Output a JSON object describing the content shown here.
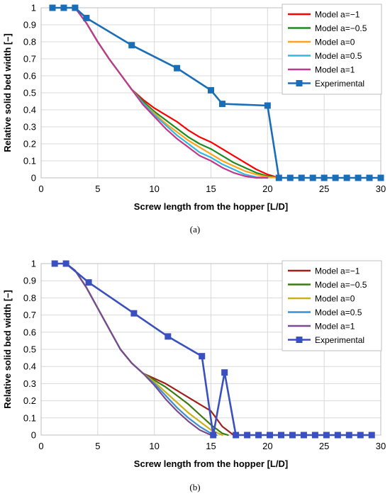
{
  "chart_data": [
    {
      "type": "line",
      "caption": "(a)",
      "xlabel": "Screw length from the hopper [L/D]",
      "ylabel": "Relative solid bed width [–]",
      "xlim": [
        0,
        30
      ],
      "ylim": [
        0,
        1
      ],
      "x_ticks": [
        "0",
        "5",
        "10",
        "15",
        "20",
        "25",
        "30"
      ],
      "y_ticks": [
        "0",
        "0.1",
        "0.2",
        "0.3",
        "0.4",
        "0.5",
        "0.6",
        "0.7",
        "0.8",
        "0.9",
        "1"
      ],
      "grid": true,
      "legend_position": "top-right",
      "series": [
        {
          "name": "Model a=−1",
          "color": "#ff0000",
          "marker": false,
          "x": [
            3,
            4,
            5,
            6,
            7,
            8,
            9,
            10,
            11,
            12,
            13,
            14,
            15,
            16,
            17,
            18,
            19,
            20,
            21
          ],
          "y": [
            1.0,
            0.91,
            0.8,
            0.7,
            0.61,
            0.52,
            0.46,
            0.41,
            0.37,
            0.33,
            0.28,
            0.24,
            0.21,
            0.17,
            0.13,
            0.09,
            0.05,
            0.02,
            0.0
          ]
        },
        {
          "name": "Model a=−0.5",
          "color": "#1f8a1f",
          "marker": false,
          "x": [
            3,
            4,
            5,
            6,
            7,
            8,
            9,
            10,
            11,
            12,
            13,
            14,
            15,
            16,
            17,
            18,
            19,
            20,
            21
          ],
          "y": [
            1.0,
            0.91,
            0.8,
            0.7,
            0.61,
            0.52,
            0.45,
            0.39,
            0.34,
            0.29,
            0.24,
            0.2,
            0.17,
            0.13,
            0.09,
            0.06,
            0.03,
            0.01,
            0.0
          ]
        },
        {
          "name": "Model a=0",
          "color": "#ffa31a",
          "marker": false,
          "x": [
            3,
            4,
            5,
            6,
            7,
            8,
            9,
            10,
            11,
            12,
            13,
            14,
            15,
            16,
            17,
            18,
            19,
            20,
            21
          ],
          "y": [
            1.0,
            0.91,
            0.8,
            0.7,
            0.61,
            0.52,
            0.44,
            0.38,
            0.32,
            0.27,
            0.22,
            0.18,
            0.14,
            0.1,
            0.07,
            0.04,
            0.02,
            0.005,
            0.0
          ]
        },
        {
          "name": "Model a=0.5",
          "color": "#33b8e0",
          "marker": false,
          "x": [
            3,
            4,
            5,
            6,
            7,
            8,
            9,
            10,
            11,
            12,
            13,
            14,
            15,
            16,
            17,
            18,
            19,
            20
          ],
          "y": [
            1.0,
            0.91,
            0.8,
            0.7,
            0.61,
            0.52,
            0.44,
            0.37,
            0.31,
            0.25,
            0.2,
            0.15,
            0.12,
            0.08,
            0.05,
            0.02,
            0.005,
            0.0
          ]
        },
        {
          "name": "Model a=1",
          "color": "#c0398a",
          "marker": false,
          "x": [
            3,
            4,
            5,
            6,
            7,
            8,
            9,
            10,
            11,
            12,
            13,
            14,
            15,
            16,
            17,
            18,
            19,
            20
          ],
          "y": [
            1.0,
            0.91,
            0.8,
            0.7,
            0.61,
            0.52,
            0.43,
            0.36,
            0.29,
            0.23,
            0.18,
            0.13,
            0.1,
            0.06,
            0.03,
            0.01,
            0.0,
            0.0
          ]
        },
        {
          "name": "Experimental",
          "color": "#1a6eb8",
          "marker": true,
          "x": [
            1,
            2,
            3,
            4,
            8,
            12,
            15,
            16,
            20,
            21,
            22,
            23,
            24,
            25,
            26,
            27,
            28,
            29,
            30
          ],
          "y": [
            1.0,
            1.0,
            1.0,
            0.94,
            0.78,
            0.645,
            0.515,
            0.435,
            0.425,
            0.0,
            0.0,
            0.0,
            0.0,
            0.0,
            0.0,
            0.0,
            0.0,
            0.0,
            0.0
          ]
        }
      ]
    },
    {
      "type": "line",
      "caption": "(b)",
      "xlabel": "Screw length from the hopper [L/D]",
      "ylabel": "Relative solid bed width [–]",
      "xlim": [
        0,
        30
      ],
      "ylim": [
        0,
        1
      ],
      "x_ticks": [
        "0",
        "5",
        "10",
        "15",
        "20",
        "25",
        "30"
      ],
      "y_ticks": [
        "0",
        "0.1",
        "0.2",
        "0.3",
        "0.4",
        "0.5",
        "0.6",
        "0.7",
        "0.8",
        "0.9",
        "1"
      ],
      "grid": true,
      "legend_position": "top-right",
      "series": [
        {
          "name": "Model a=−1",
          "color": "#a0201a",
          "marker": false,
          "x": [
            2.2,
            3,
            4,
            5,
            6,
            7,
            8,
            9,
            10,
            11,
            12,
            13,
            14,
            15,
            16,
            17
          ],
          "y": [
            1.0,
            0.96,
            0.86,
            0.74,
            0.62,
            0.5,
            0.42,
            0.36,
            0.33,
            0.3,
            0.26,
            0.22,
            0.18,
            0.14,
            0.05,
            0.0
          ]
        },
        {
          "name": "Model a=−0.5",
          "color": "#3d7a12",
          "marker": false,
          "x": [
            2.2,
            3,
            4,
            5,
            6,
            7,
            8,
            9,
            10,
            11,
            12,
            13,
            14,
            15,
            16,
            16.5
          ],
          "y": [
            1.0,
            0.96,
            0.86,
            0.74,
            0.62,
            0.5,
            0.42,
            0.36,
            0.32,
            0.28,
            0.23,
            0.18,
            0.12,
            0.06,
            0.01,
            0.0
          ]
        },
        {
          "name": "Model a=0",
          "color": "#c7b21a",
          "marker": false,
          "x": [
            2.2,
            3,
            4,
            5,
            6,
            7,
            8,
            9,
            10,
            11,
            12,
            13,
            14,
            15,
            16
          ],
          "y": [
            1.0,
            0.96,
            0.86,
            0.74,
            0.62,
            0.5,
            0.42,
            0.36,
            0.31,
            0.25,
            0.19,
            0.13,
            0.08,
            0.03,
            0.0
          ]
        },
        {
          "name": "Model a=0.5",
          "color": "#3c8ed4",
          "marker": false,
          "x": [
            2.2,
            3,
            4,
            5,
            6,
            7,
            8,
            9,
            10,
            11,
            12,
            13,
            14,
            15,
            15.5
          ],
          "y": [
            1.0,
            0.96,
            0.86,
            0.74,
            0.62,
            0.5,
            0.42,
            0.36,
            0.3,
            0.23,
            0.16,
            0.1,
            0.05,
            0.01,
            0.0
          ]
        },
        {
          "name": "Model a=1",
          "color": "#7a4a90",
          "marker": false,
          "x": [
            2.2,
            3,
            4,
            5,
            6,
            7,
            8,
            9,
            10,
            11,
            12,
            13,
            14,
            15
          ],
          "y": [
            1.0,
            0.96,
            0.86,
            0.74,
            0.62,
            0.5,
            0.42,
            0.36,
            0.29,
            0.21,
            0.14,
            0.08,
            0.03,
            0.0
          ]
        },
        {
          "name": "Experimental",
          "color": "#3a4fc0",
          "marker": true,
          "x": [
            1.2,
            2.2,
            4.2,
            8.2,
            11.2,
            14.2,
            15.2,
            16.2,
            17.2,
            18.2,
            19.2,
            20.2,
            21.2,
            22.2,
            23.2,
            24.2,
            25.2,
            26.2,
            27.2,
            28.2,
            29.2
          ],
          "y": [
            1.0,
            1.0,
            0.89,
            0.71,
            0.575,
            0.46,
            0.0,
            0.365,
            0.0,
            0.0,
            0.0,
            0.0,
            0.0,
            0.0,
            0.0,
            0.0,
            0.0,
            0.0,
            0.0,
            0.0,
            0.0
          ]
        }
      ]
    }
  ]
}
